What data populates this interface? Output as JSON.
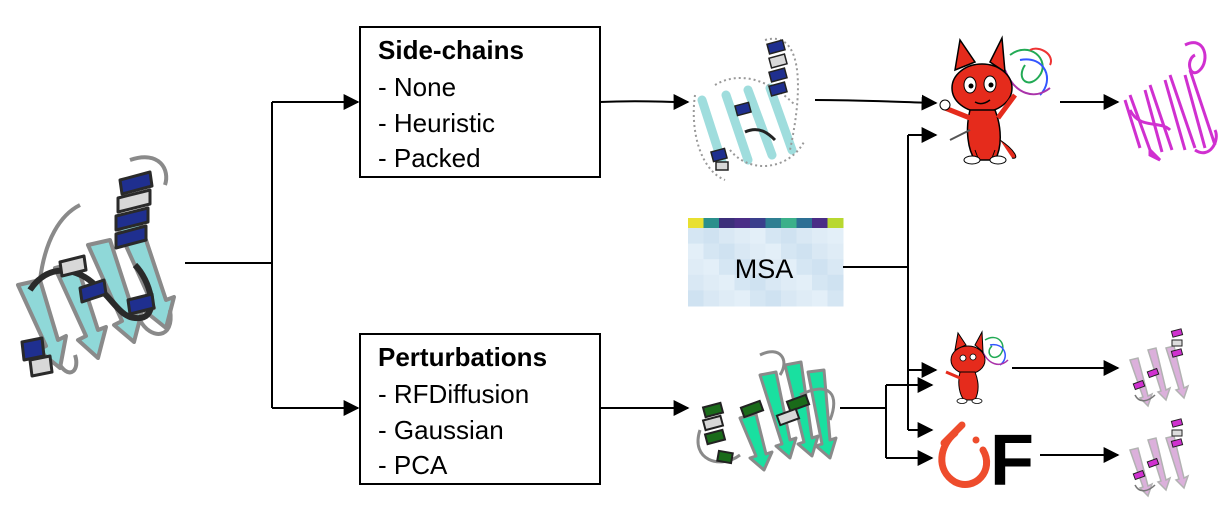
{
  "sidechains_box": {
    "title": "Side-chains",
    "items": [
      "- None",
      "- Heuristic",
      "- Packed"
    ]
  },
  "perturbations_box": {
    "title": "Perturbations",
    "items": [
      "- RFDiffusion",
      "- Gaussian",
      "- PCA"
    ]
  },
  "msa": {
    "label": "MSA",
    "strip_colors": [
      "#e8e030",
      "#2a8f8c",
      "#3b2f7a",
      "#4a2d86",
      "#3a3f8c",
      "#2f7f92",
      "#3bb08a",
      "#2d6f94",
      "#4a2d86",
      "#b8d830"
    ]
  },
  "logo": {
    "letter": "F",
    "icon": "pytorch-like-flame-icon",
    "color": "#ee4c2c"
  },
  "colors": {
    "input_helix": "#1f2f8f",
    "input_strand": "#8fd8d8",
    "perturbed_helix": "#1a6b1a",
    "perturbed_strand": "#19e0a0",
    "output_magenta": "#d030d0",
    "output_light": "#d8a8d8"
  }
}
